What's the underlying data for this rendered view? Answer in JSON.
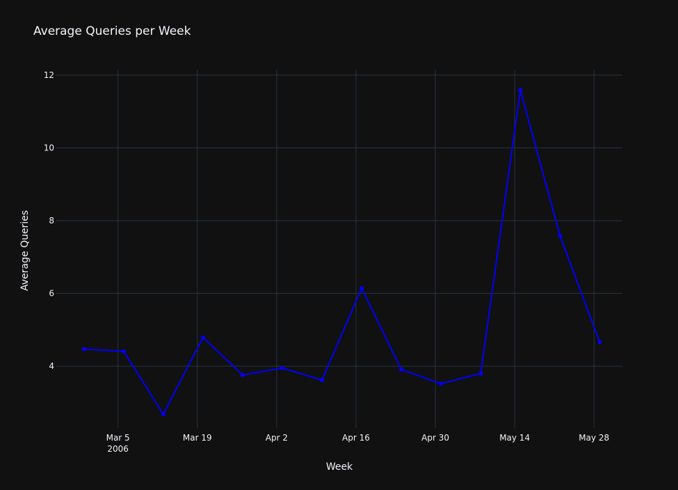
{
  "chart_data": {
    "type": "line",
    "title": "Average Queries per Week",
    "xlabel": "Week",
    "ylabel": "Average Queries",
    "x_ticks": [
      {
        "date": "2006-03-05",
        "label": "Mar 5",
        "sublabel": "2006"
      },
      {
        "date": "2006-03-19",
        "label": "Mar 19"
      },
      {
        "date": "2006-04-02",
        "label": "Apr 2"
      },
      {
        "date": "2006-04-16",
        "label": "Apr 16"
      },
      {
        "date": "2006-04-30",
        "label": "Apr 30"
      },
      {
        "date": "2006-05-14",
        "label": "May 14"
      },
      {
        "date": "2006-05-28",
        "label": "May 28"
      }
    ],
    "y_ticks": [
      4,
      6,
      8,
      10,
      12
    ],
    "xlim": [
      "2006-02-22",
      "2006-06-02"
    ],
    "ylim": [
      2.3,
      12.15
    ],
    "grid": true,
    "series": [
      {
        "color": "#0000ff",
        "x": [
          "2006-02-27",
          "2006-03-06",
          "2006-03-13",
          "2006-03-20",
          "2006-03-27",
          "2006-04-03",
          "2006-04-10",
          "2006-04-17",
          "2006-04-24",
          "2006-05-01",
          "2006-05-08",
          "2006-05-15",
          "2006-05-22",
          "2006-05-29"
        ],
        "y": [
          4.47,
          4.41,
          2.68,
          4.79,
          3.76,
          3.95,
          3.62,
          6.14,
          3.91,
          3.52,
          3.8,
          11.59,
          7.58,
          4.66
        ]
      }
    ],
    "colors": {
      "background": "#111111",
      "grid": "#283442",
      "text": "#f2f5fa"
    }
  }
}
